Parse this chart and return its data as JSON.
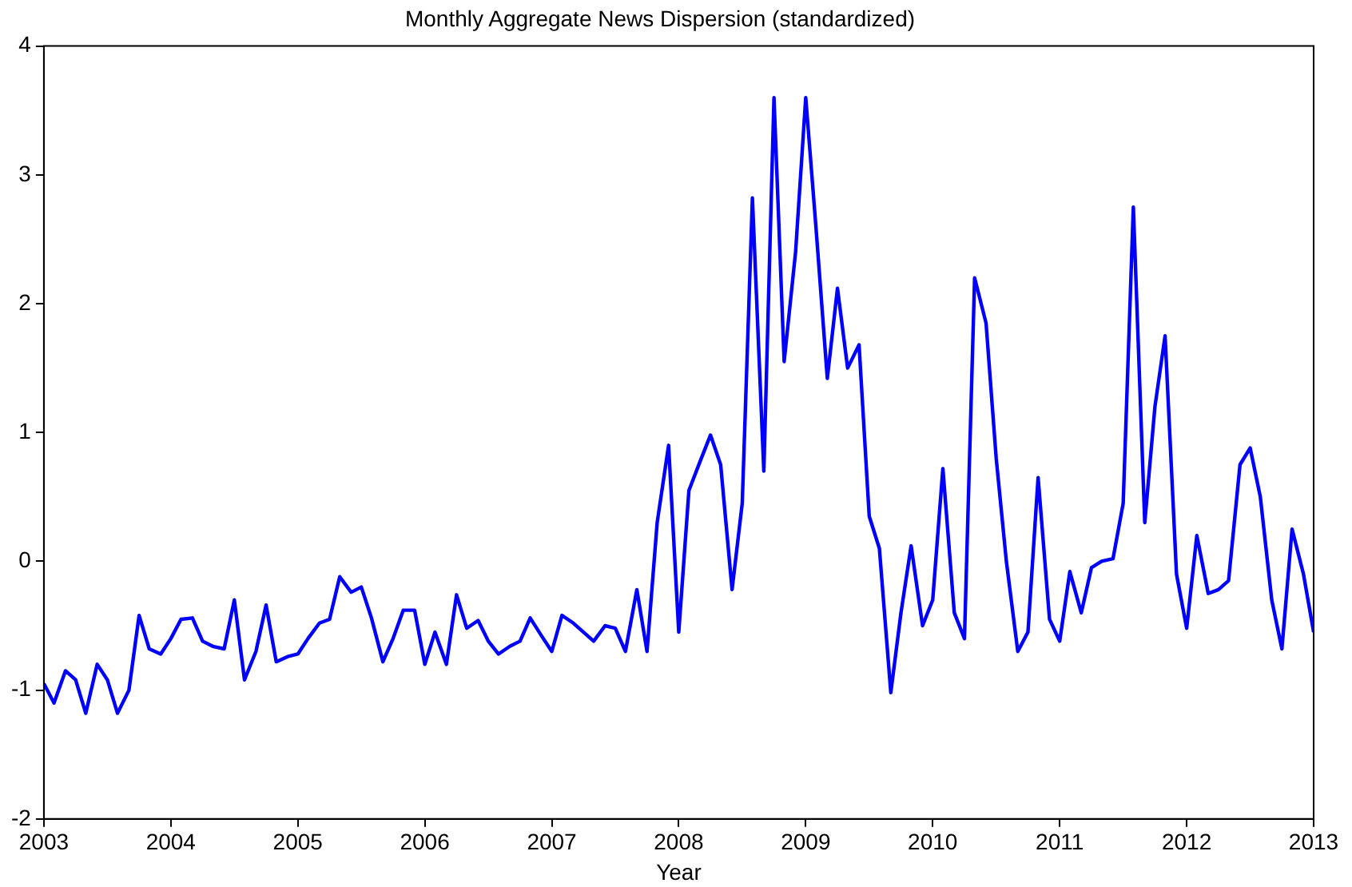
{
  "chart_data": {
    "type": "line",
    "title": "Monthly Aggregate News Dispersion (standardized)",
    "xlabel": "Year",
    "x": [
      2003.0,
      2003.08,
      2003.17,
      2003.25,
      2003.33,
      2003.42,
      2003.5,
      2003.58,
      2003.67,
      2003.75,
      2003.83,
      2003.92,
      2004.0,
      2004.08,
      2004.17,
      2004.25,
      2004.33,
      2004.42,
      2004.5,
      2004.58,
      2004.67,
      2004.75,
      2004.83,
      2004.92,
      2005.0,
      2005.08,
      2005.17,
      2005.25,
      2005.33,
      2005.42,
      2005.5,
      2005.58,
      2005.67,
      2005.75,
      2005.83,
      2005.92,
      2006.0,
      2006.08,
      2006.17,
      2006.25,
      2006.33,
      2006.42,
      2006.5,
      2006.58,
      2006.67,
      2006.75,
      2006.83,
      2006.92,
      2007.0,
      2007.08,
      2007.17,
      2007.25,
      2007.33,
      2007.42,
      2007.5,
      2007.58,
      2007.67,
      2007.75,
      2007.83,
      2007.92,
      2008.0,
      2008.08,
      2008.17,
      2008.25,
      2008.33,
      2008.42,
      2008.5,
      2008.58,
      2008.67,
      2008.75,
      2008.83,
      2008.92,
      2009.0,
      2009.08,
      2009.17,
      2009.25,
      2009.33,
      2009.42,
      2009.5,
      2009.58,
      2009.67,
      2009.75,
      2009.83,
      2009.92,
      2010.0,
      2010.08,
      2010.17,
      2010.25,
      2010.33,
      2010.42,
      2010.5,
      2010.58,
      2010.67,
      2010.75,
      2010.83,
      2010.92,
      2011.0,
      2011.08,
      2011.17,
      2011.25,
      2011.33,
      2011.42,
      2011.5,
      2011.58,
      2011.67,
      2011.75,
      2011.83,
      2011.92,
      2012.0,
      2012.08,
      2012.17,
      2012.25,
      2012.33,
      2012.42,
      2012.5,
      2012.58,
      2012.67,
      2012.75,
      2012.83,
      2012.92,
      2013.0
    ],
    "series": [
      {
        "color": "#0000ff",
        "values": [
          -0.95,
          -1.1,
          -0.85,
          -0.92,
          -1.18,
          -0.8,
          -0.92,
          -1.18,
          -1.0,
          -0.42,
          -0.68,
          -0.72,
          -0.6,
          -0.45,
          -0.44,
          -0.62,
          -0.66,
          -0.68,
          -0.3,
          -0.92,
          -0.7,
          -0.34,
          -0.78,
          -0.74,
          -0.72,
          -0.6,
          -0.48,
          -0.45,
          -0.12,
          -0.24,
          -0.2,
          -0.44,
          -0.78,
          -0.6,
          -0.38,
          -0.38,
          -0.8,
          -0.55,
          -0.8,
          -0.26,
          -0.52,
          -0.46,
          -0.62,
          -0.72,
          -0.66,
          -0.62,
          -0.44,
          -0.58,
          -0.7,
          -0.42,
          -0.48,
          -0.55,
          -0.62,
          -0.5,
          -0.52,
          -0.7,
          -0.22,
          -0.7,
          0.3,
          0.9,
          -0.55,
          0.55,
          0.78,
          0.98,
          0.75,
          -0.22,
          0.45,
          2.82,
          0.7,
          3.6,
          1.55,
          2.4,
          3.6,
          2.6,
          1.42,
          2.12,
          1.5,
          1.68,
          0.35,
          0.1,
          -1.02,
          -0.4,
          0.12,
          -0.5,
          -0.3,
          0.72,
          -0.4,
          -0.6,
          2.2,
          1.85,
          0.8,
          0.0,
          -0.7,
          -0.55,
          0.65,
          -0.45,
          -0.62,
          -0.08,
          -0.4,
          -0.05,
          0.0,
          0.02,
          0.45,
          2.75,
          0.3,
          1.2,
          1.75,
          -0.1,
          -0.52,
          0.2,
          -0.25,
          -0.22,
          -0.15,
          0.75,
          0.88,
          0.5,
          -0.3,
          -0.68,
          0.25,
          -0.1,
          -0.55
        ]
      }
    ],
    "xlim": [
      2003,
      2013
    ],
    "xticks": [
      2003,
      2004,
      2005,
      2006,
      2007,
      2008,
      2009,
      2010,
      2011,
      2012,
      2013
    ],
    "ylim": [
      -2,
      4
    ],
    "yticks": [
      -2,
      -1,
      0,
      1,
      2,
      3,
      4
    ],
    "grid": false,
    "legend": false,
    "marker": "none",
    "line_style": "solid"
  }
}
